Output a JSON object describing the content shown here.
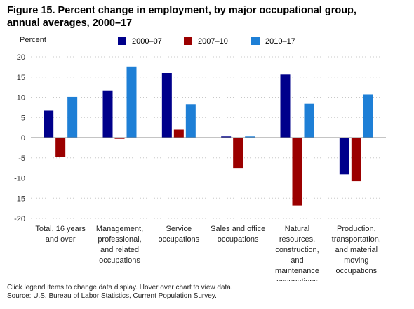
{
  "header": {
    "title_line1": "Figure 15. Percent change in employment, by major occupational group,",
    "title_line2": "annual averages, 2000–17"
  },
  "footer": {
    "note": "Click legend items to change data display. Hover over chart to view data.",
    "source": "Source: U.S. Bureau of Labor Statistics, Current Population Survey."
  },
  "chart_data": {
    "type": "bar",
    "ylabel": "Percent",
    "ylim": [
      -20,
      20
    ],
    "yticks": [
      20,
      15,
      10,
      5,
      0,
      -5,
      -10,
      -15,
      -20
    ],
    "grid": true,
    "legend_position": "top",
    "categories": [
      [
        "Total, 16 years",
        "and over"
      ],
      [
        "Management,",
        "professional,",
        "and related",
        "occupations"
      ],
      [
        "Service",
        "occupations"
      ],
      [
        "Sales and office",
        "occupations"
      ],
      [
        "Natural",
        "resources,",
        "construction,",
        "and",
        "maintenance",
        "occupations"
      ],
      [
        "Production,",
        "transportation,",
        "and material",
        "moving",
        "occupations"
      ]
    ],
    "series": [
      {
        "name": "2000–07",
        "color": "#00008b",
        "values": [
          6.7,
          11.7,
          16.0,
          0.3,
          15.6,
          -9.1
        ]
      },
      {
        "name": "2007–10",
        "color": "#9b0000",
        "values": [
          -4.8,
          -0.3,
          2.0,
          -7.5,
          -16.8,
          -10.8
        ]
      },
      {
        "name": "2010–17",
        "color": "#1e7fd6",
        "values": [
          10.1,
          17.6,
          8.3,
          0.3,
          8.4,
          10.7
        ]
      }
    ]
  }
}
